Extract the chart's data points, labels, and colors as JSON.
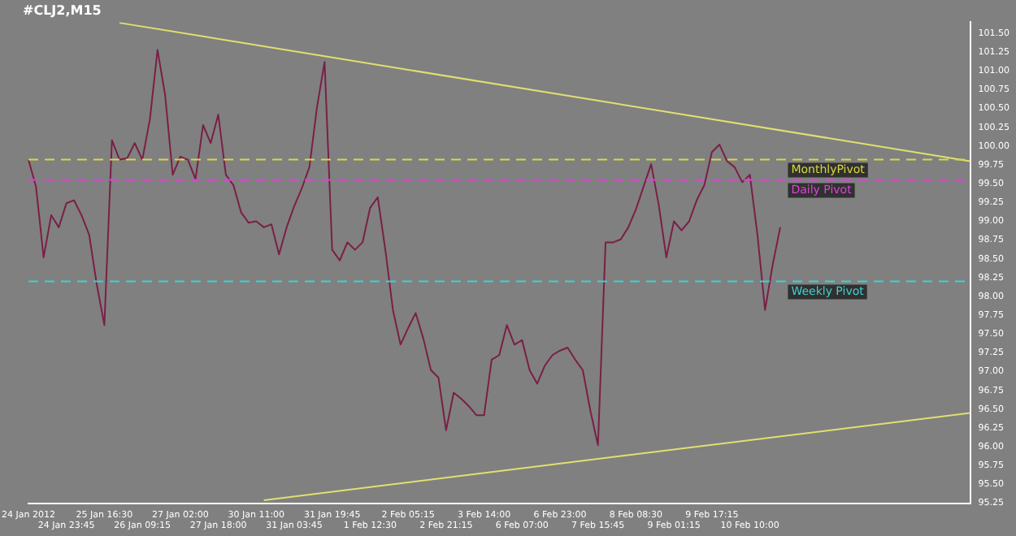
{
  "chart_data": {
    "type": "line",
    "title": "#CLJ2,M15",
    "categories": [
      "24 Jan 2012",
      null,
      null,
      null,
      null,
      "24 Jan 23:45",
      null,
      null,
      null,
      null,
      "25 Jan 16:30",
      null,
      null,
      null,
      null,
      "26 Jan 09:15",
      null,
      null,
      null,
      null,
      "27 Jan 02:00",
      null,
      null,
      null,
      null,
      "27 Jan 18:00",
      null,
      null,
      null,
      null,
      "30 Jan 11:00",
      null,
      null,
      null,
      null,
      "31 Jan 03:45",
      null,
      null,
      null,
      null,
      "31 Jan 19:45",
      null,
      null,
      null,
      null,
      "1 Feb 12:30",
      null,
      null,
      null,
      null,
      "2 Feb 05:15",
      null,
      null,
      null,
      null,
      "2 Feb 21:15",
      null,
      null,
      null,
      null,
      "3 Feb 14:00",
      null,
      null,
      null,
      null,
      "6 Feb 07:00",
      null,
      null,
      null,
      null,
      "6 Feb 23:00",
      null,
      null,
      null,
      null,
      "7 Feb 15:45",
      null,
      null,
      null,
      null,
      "8 Feb 08:30",
      null,
      null,
      null,
      null,
      "9 Feb 01:15",
      null,
      null,
      null,
      null,
      "9 Feb 17:15",
      null,
      null,
      null,
      null,
      "10 Feb 10:00",
      null,
      null,
      null,
      null,
      null,
      null,
      null,
      null,
      null,
      null,
      null,
      null,
      null,
      null,
      null,
      null,
      null,
      null,
      null,
      null,
      null,
      null,
      null,
      null,
      null,
      null,
      null,
      null,
      null
    ],
    "series": [
      {
        "color": "#7a1f45",
        "values": [
          99.82,
          99.46,
          98.52,
          99.08,
          98.92,
          99.24,
          99.28,
          99.08,
          98.82,
          98.16,
          97.62,
          100.08,
          99.82,
          99.84,
          100.04,
          99.82,
          100.36,
          101.28,
          100.68,
          99.62,
          99.86,
          99.82,
          99.56,
          100.28,
          100.04,
          100.42,
          99.62,
          99.48,
          99.12,
          98.98,
          99.0,
          98.92,
          98.96,
          98.56,
          98.92,
          99.2,
          99.44,
          99.72,
          100.52,
          101.12,
          98.62,
          98.48,
          98.72,
          98.62,
          98.72,
          99.18,
          99.32,
          98.62,
          97.82,
          97.36,
          97.58,
          97.78,
          97.44,
          97.02,
          96.92,
          96.22,
          96.72,
          96.64,
          96.54,
          96.42,
          96.42,
          97.16,
          97.22,
          97.62,
          97.36,
          97.42,
          97.02,
          96.84,
          97.08,
          97.22,
          97.28,
          97.32,
          97.16,
          97.02,
          96.48,
          96.02,
          98.72,
          98.72,
          98.76,
          98.92,
          99.16,
          99.46,
          99.76,
          99.22,
          98.52,
          99.0,
          98.88,
          99.0,
          99.28,
          99.48,
          99.92,
          100.02,
          99.8,
          99.72,
          99.52,
          99.62,
          98.82,
          97.82,
          98.42,
          98.92,
          null,
          null,
          null,
          null,
          null,
          null,
          null,
          null,
          null,
          null,
          null,
          null,
          null,
          null,
          null,
          null,
          null,
          null,
          null,
          null,
          null,
          null,
          null,
          null,
          null
        ]
      },
      {
        "color": "#e0e070",
        "values": [
          null,
          null,
          null,
          null,
          null,
          null,
          null,
          null,
          null,
          null,
          null,
          null,
          101.64,
          null,
          null,
          null,
          null,
          null,
          null,
          null,
          null,
          null,
          null,
          null,
          null,
          null,
          null,
          null,
          null,
          null,
          null,
          null,
          null,
          null,
          null,
          null,
          null,
          null,
          null,
          null,
          null,
          null,
          null,
          null,
          null,
          null,
          null,
          null,
          null,
          null,
          null,
          null,
          null,
          null,
          null,
          null,
          null,
          null,
          null,
          null,
          null,
          null,
          null,
          null,
          null,
          null,
          null,
          null,
          null,
          null,
          null,
          null,
          null,
          null,
          null,
          null,
          null,
          null,
          null,
          null,
          null,
          null,
          null,
          null,
          null,
          null,
          null,
          null,
          null,
          null,
          null,
          null,
          null,
          null,
          null,
          null,
          null,
          null,
          null,
          null,
          null,
          null,
          null,
          null,
          null,
          null,
          null,
          null,
          null,
          null,
          null,
          null,
          null,
          null,
          null,
          null,
          null,
          null,
          null,
          null,
          null,
          null,
          null,
          null,
          99.8
        ]
      },
      {
        "color": "#e0e070",
        "values": [
          null,
          null,
          null,
          null,
          null,
          null,
          null,
          null,
          null,
          null,
          null,
          null,
          null,
          null,
          null,
          null,
          null,
          null,
          null,
          null,
          null,
          null,
          null,
          null,
          null,
          null,
          null,
          null,
          null,
          null,
          null,
          95.29,
          null,
          null,
          null,
          null,
          null,
          null,
          null,
          null,
          null,
          null,
          null,
          null,
          null,
          null,
          null,
          null,
          null,
          null,
          null,
          null,
          null,
          null,
          null,
          null,
          null,
          null,
          null,
          null,
          null,
          null,
          null,
          null,
          null,
          null,
          null,
          null,
          null,
          null,
          null,
          null,
          null,
          null,
          null,
          null,
          null,
          null,
          null,
          null,
          null,
          null,
          null,
          null,
          null,
          null,
          null,
          null,
          null,
          null,
          null,
          null,
          null,
          null,
          null,
          null,
          null,
          null,
          null,
          null,
          null,
          null,
          null,
          null,
          null,
          null,
          null,
          null,
          null,
          null,
          null,
          null,
          null,
          null,
          null,
          null,
          null,
          null,
          null,
          null,
          null,
          null,
          null,
          null,
          96.45
        ]
      }
    ],
    "ylim": [
      95.25,
      101.65
    ],
    "yticks": [
      {
        "value": 95.25,
        "label": "95.25"
      },
      {
        "value": 95.5,
        "label": "95.50"
      },
      {
        "value": 95.75,
        "label": "95.75"
      },
      {
        "value": 96,
        "label": "96.00"
      },
      {
        "value": 96.25,
        "label": "96.25"
      },
      {
        "value": 96.5,
        "label": "96.50"
      },
      {
        "value": 96.75,
        "label": "96.75"
      },
      {
        "value": 97,
        "label": "97.00"
      },
      {
        "value": 97.25,
        "label": "97.25"
      },
      {
        "value": 97.5,
        "label": "97.50"
      },
      {
        "value": 97.75,
        "label": "97.75"
      },
      {
        "value": 98,
        "label": "98.00"
      },
      {
        "value": 98.25,
        "label": "98.25"
      },
      {
        "value": 98.5,
        "label": "98.50"
      },
      {
        "value": 98.75,
        "label": "98.75"
      },
      {
        "value": 99,
        "label": "99.00"
      },
      {
        "value": 99.25,
        "label": "99.25"
      },
      {
        "value": 99.5,
        "label": "99.50"
      },
      {
        "value": 99.75,
        "label": "99.75"
      },
      {
        "value": 100,
        "label": "100.00"
      },
      {
        "value": 100.25,
        "label": "100.25"
      },
      {
        "value": 100.5,
        "label": "100.50"
      },
      {
        "value": 100.75,
        "label": "100.75"
      },
      {
        "value": 101,
        "label": "101.00"
      },
      {
        "value": 101.25,
        "label": "101.25"
      },
      {
        "value": 101.5,
        "label": "101.50"
      }
    ],
    "ref_lines": [
      {
        "axis": "y",
        "value": 99.82,
        "label": "MonthlyPivot",
        "color": "#d8d840",
        "line_style": "dashed"
      },
      {
        "axis": "y",
        "value": 99.55,
        "label": "Daily Pivot",
        "color": "#e040e0",
        "line_style": "dashed"
      },
      {
        "axis": "y",
        "value": 98.2,
        "label": "Weekly Pivot",
        "color": "#40d0d0",
        "line_style": "dashed"
      }
    ],
    "grid": false,
    "legend": false,
    "marker": "none",
    "line_style": "solid"
  }
}
